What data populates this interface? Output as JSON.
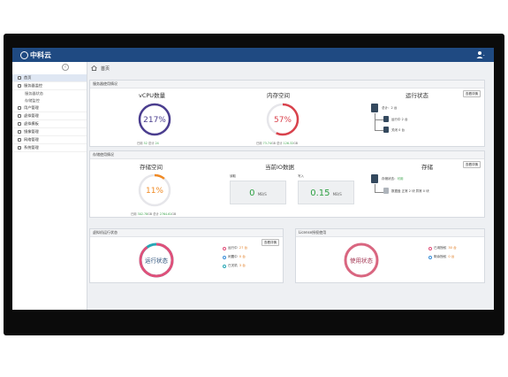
{
  "header": {
    "logo_text": "中科云"
  },
  "breadcrumb": {
    "label": "首页"
  },
  "sidebar": {
    "items": [
      {
        "label": "首页",
        "active": true
      },
      {
        "label": "服务器监控"
      },
      {
        "label": "服务器状态",
        "sub": true
      },
      {
        "label": "存储监控",
        "sub": true
      },
      {
        "label": "用户管理"
      },
      {
        "label": "虚拟管理"
      },
      {
        "label": "虚拟模板"
      },
      {
        "label": "镜像管理"
      },
      {
        "label": "网络管理"
      },
      {
        "label": "系统管理"
      }
    ]
  },
  "server_panel": {
    "header": "服务器使用情况",
    "detail_button": "查看详情",
    "vcpu": {
      "title": "vCPU数量",
      "percent": "217%",
      "value": 217,
      "caption_prefix": "已用",
      "used": "52",
      "caption_mid": "总计",
      "total": "24"
    },
    "memory": {
      "title": "内存空间",
      "percent": "57%",
      "value": 57,
      "caption_prefix": "已用",
      "used": "73.74",
      "caption_mid": "总计",
      "total": "126.32",
      "unit": "GB"
    },
    "status": {
      "title": "运行状态",
      "total_label": "总计：2 台",
      "running": "运行中 2 台",
      "stopped": "关闭 0 台"
    }
  },
  "storage_panel": {
    "header": "存储使用情况",
    "detail_button": "查看详情",
    "space": {
      "title": "存储空间",
      "percent": "11%",
      "value": 11,
      "caption_prefix": "已用",
      "used": "302.78",
      "caption_mid": "总计",
      "total": "2764.61",
      "unit": "GB"
    },
    "io": {
      "title": "当前IO数据",
      "read_label": "读取",
      "read_value": "0",
      "read_unit": "MB/S",
      "write_label": "写入",
      "write_value": "0.15",
      "write_unit": "MB/S"
    },
    "store": {
      "title": "存储",
      "status_label": "存储状态：",
      "status_value": "可用",
      "detail": "数据盘 正常 2 块 异常 0 块"
    }
  },
  "vm_panel": {
    "header": "虚拟机运行状态",
    "detail_button": "查看详情",
    "center": "运行状态",
    "legend": [
      {
        "label": "运行中",
        "count": "27 台",
        "color": "#e0507a"
      },
      {
        "label": "闲置中",
        "count": "0 台",
        "color": "#3b8fd8"
      },
      {
        "label": "已关机",
        "count": "3 台",
        "color": "#27a7b6"
      }
    ]
  },
  "license_panel": {
    "header": "License授权使用",
    "center": "使用状态",
    "legend": [
      {
        "label": "已用授权",
        "count": "30 台",
        "color": "#e0507a"
      },
      {
        "label": "剩余授权",
        "count": "0 台",
        "color": "#3b8fd8"
      }
    ]
  },
  "colors": {
    "topbar": "#1f4a82",
    "vcpu_ring": "#4b3e8f",
    "memory_ring": "#d9424c",
    "storage_ring": "#f08a24",
    "vm_ring": "#e0507a",
    "license_ring": "#d96680"
  }
}
